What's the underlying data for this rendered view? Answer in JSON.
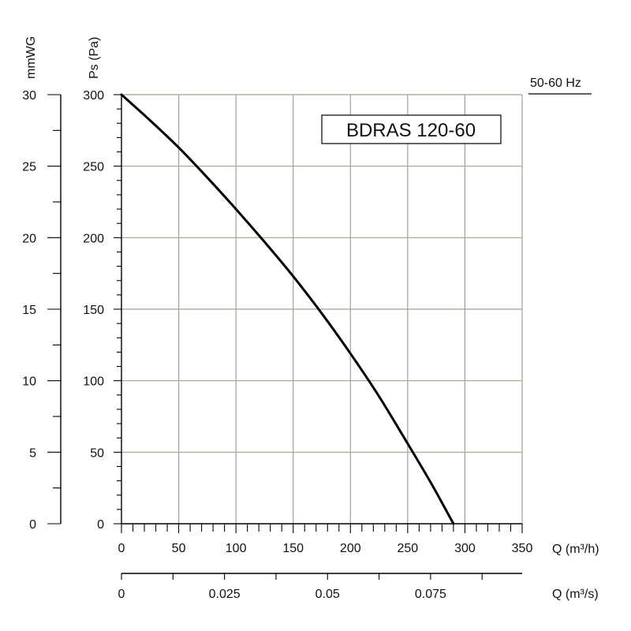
{
  "chart_data": {
    "type": "line",
    "title": "BDRAS 120-60",
    "frequency_label": "50-60 Hz",
    "y_label_pa": "Ps (Pa)",
    "y_label_mmwg": "mmWG",
    "x_label_m3h": "Q (m³/h)",
    "x_label_m3s": "Q (m³/s)",
    "xlim": [
      0,
      350
    ],
    "ylim": [
      0,
      300
    ],
    "x_ticks": [
      "0",
      "50",
      "100",
      "150",
      "200",
      "250",
      "300",
      "350"
    ],
    "x_ticks_m3s": [
      "0",
      "0.025",
      "0.05",
      "0.075"
    ],
    "y_ticks_pa": [
      "0",
      "50",
      "100",
      "150",
      "200",
      "250",
      "300"
    ],
    "y_ticks_mmwg": [
      "0",
      "5",
      "10",
      "15",
      "20",
      "25",
      "30"
    ],
    "grid": true,
    "series": [
      {
        "x": [
          0,
          25,
          50,
          75,
          100,
          125,
          150,
          175,
          200,
          225,
          250,
          270,
          290
        ],
        "y": [
          300,
          282,
          263,
          242,
          220,
          197,
          173,
          147,
          119,
          89,
          56,
          29,
          0
        ]
      }
    ],
    "colors": {
      "curve": "#000000",
      "grid": "#a89f8c",
      "axis": "#000000"
    }
  }
}
